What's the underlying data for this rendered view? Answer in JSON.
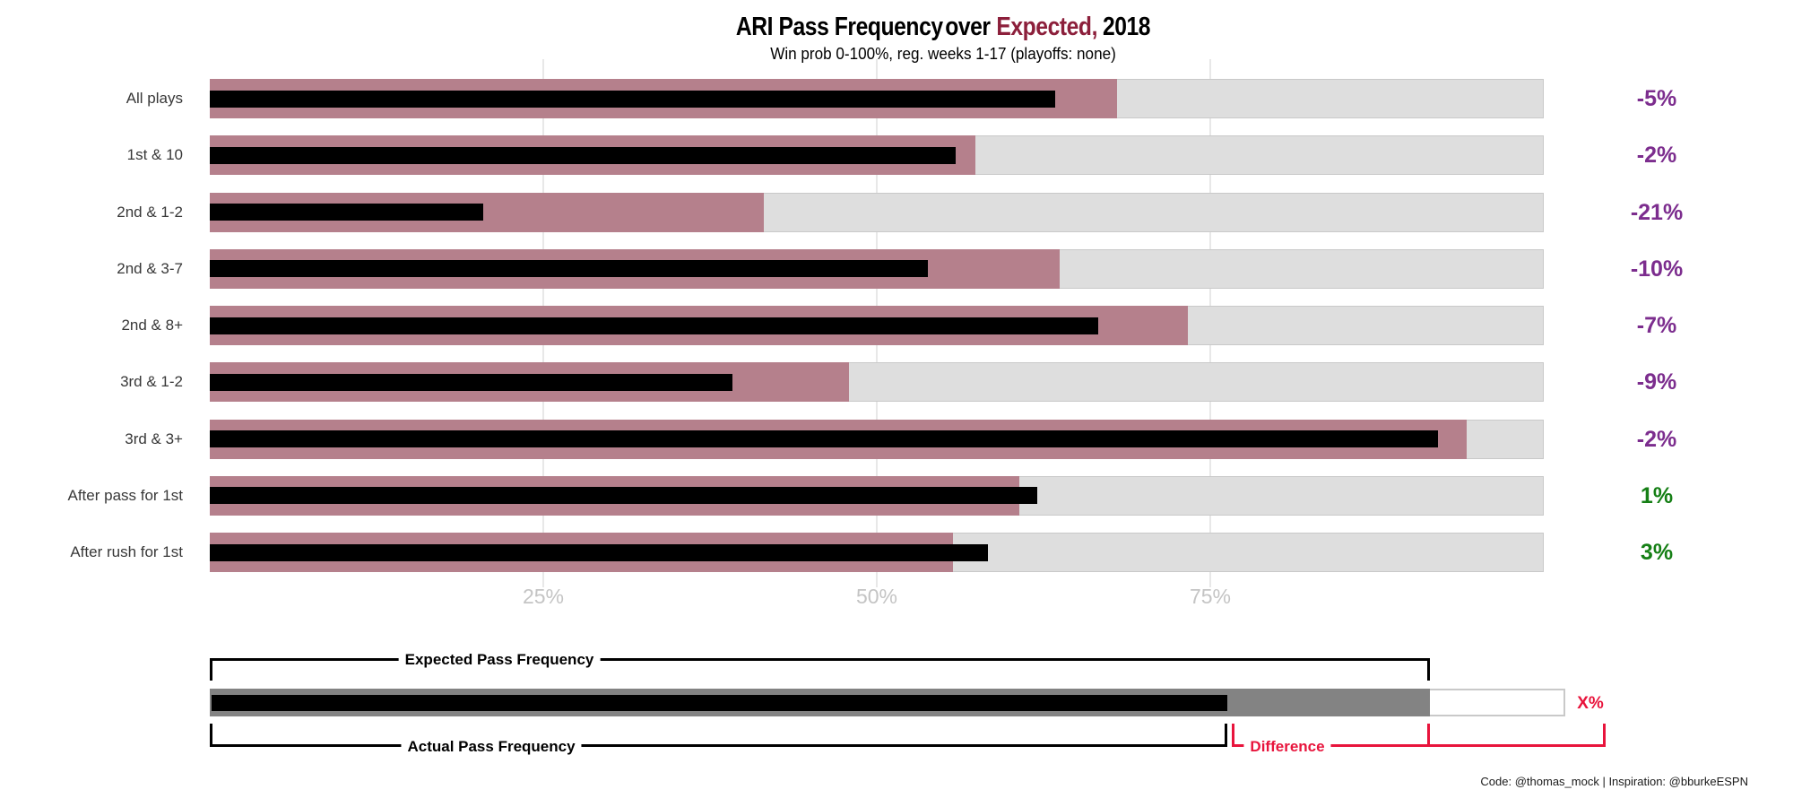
{
  "title": {
    "main": "ARI Pass Frequency",
    "over": "over",
    "expected": "Expected,",
    "year": "2018"
  },
  "subtitle": "Win prob 0-100%, reg. weeks 1-17 (playoffs: none)",
  "colors": {
    "title_accent_red": "#8c1f3b",
    "expected_bar_pink": "#b5808c",
    "actual_bar_black": "#000000",
    "background_bar_gray": "#dedede",
    "background_bar_border": "#c9c9c9",
    "gridline_gray": "#e8e8e8",
    "tick_label_gray": "#c4c4c4",
    "negative_diff_purple": "#7c2d8e",
    "positive_diff_green": "#157f15",
    "legend_red": "#e8143c",
    "legend_gray": "#838383"
  },
  "chart_data": {
    "type": "bar",
    "orientation": "horizontal",
    "title": "ARI Pass Frequency over Expected, 2018",
    "subtitle": "Win prob 0-100%, reg. weeks 1-17 (playoffs: none)",
    "xlim": [
      0,
      100
    ],
    "xticks": [
      25,
      50,
      75
    ],
    "xtick_labels": [
      "25%",
      "50%",
      "75%"
    ],
    "categories": [
      "All plays",
      "1st & 10",
      "2nd & 1-2",
      "2nd & 3-7",
      "2nd & 8+",
      "3rd & 1-2",
      "3rd & 3+",
      "After pass for 1st",
      "After rush for 1st"
    ],
    "series": [
      {
        "name": "Expected Pass Frequency",
        "color": "#b5808c",
        "values": [
          68.0,
          57.4,
          41.5,
          63.7,
          73.3,
          47.9,
          94.2,
          60.7,
          55.7
        ]
      },
      {
        "name": "Actual Pass Frequency",
        "color": "#000000",
        "values": [
          63.4,
          55.9,
          20.5,
          53.8,
          66.6,
          39.2,
          92.1,
          62.0,
          58.3
        ]
      }
    ],
    "difference_labels": [
      {
        "text": "-5%",
        "color": "#7c2d8e"
      },
      {
        "text": "-2%",
        "color": "#7c2d8e"
      },
      {
        "text": "-21%",
        "color": "#7c2d8e"
      },
      {
        "text": "-10%",
        "color": "#7c2d8e"
      },
      {
        "text": "-7%",
        "color": "#7c2d8e"
      },
      {
        "text": "-9%",
        "color": "#7c2d8e"
      },
      {
        "text": "-2%",
        "color": "#7c2d8e"
      },
      {
        "text": "1%",
        "color": "#157f15"
      },
      {
        "text": "3%",
        "color": "#157f15"
      }
    ]
  },
  "legend": {
    "expected_label": "Expected Pass Frequency",
    "actual_label": "Actual Pass Frequency",
    "difference_label": "Difference",
    "x_label": "X%"
  },
  "footer": {
    "credit": "Code: @thomas_mock | Inspiration: @bburkeESPN"
  }
}
